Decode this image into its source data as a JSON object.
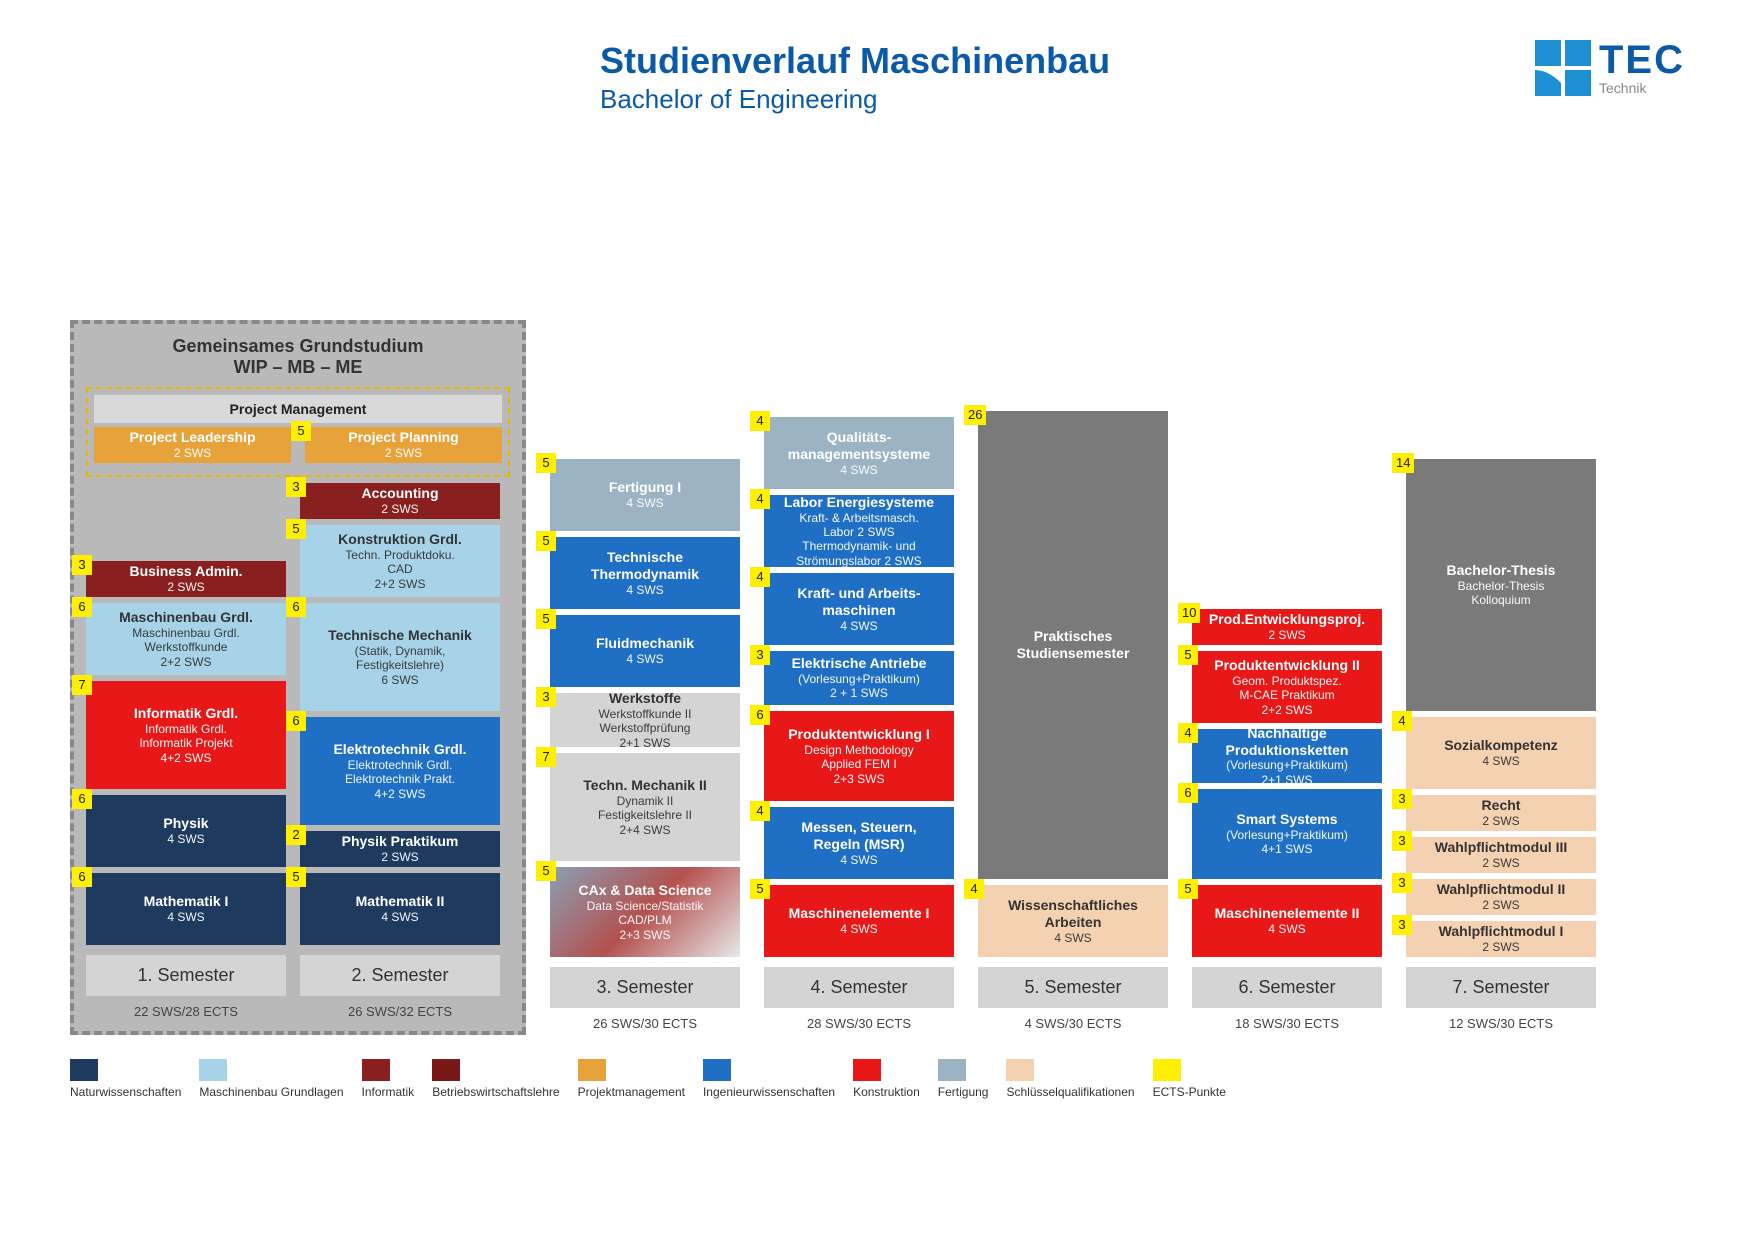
{
  "title": "Studienverlauf Maschinenbau",
  "subtitle": "Bachelor of Engineering",
  "logo": {
    "tec": "TEC",
    "sub": "Technik"
  },
  "colors": {
    "natur": "#1e3a5f",
    "mbgrund": "#a7d3e8",
    "informatik": "#7a1818",
    "bwl": "#7a1818",
    "bwl2": "#8a1f1f",
    "proj": "#e8a23a",
    "ingw": "#1f6fc4",
    "konstr": "#e81818",
    "fert": "#9cb3c4",
    "schl": "#f4d1b0",
    "ects": "#ffef00",
    "grey": "#7a7a7a",
    "greylight": "#d4d4d4"
  },
  "pxPerSws": 18,
  "grund": {
    "header1": "Gemeinsames Grundstudium",
    "header2": "WIP – MB – ME",
    "pmHeader": "Project Management"
  },
  "semesters": [
    {
      "id": "s1",
      "label": "1. Semester",
      "sws": "22 SWS/28 ECTS",
      "modules": [
        {
          "name": "project-leadership",
          "title": "Project Leadership",
          "sub": "2 SWS",
          "ects": "",
          "height": 2,
          "color": "proj",
          "inPM": true
        },
        {
          "name": "business-admin",
          "title": "Business Admin.",
          "sub": "2 SWS",
          "ects": "3",
          "height": 2,
          "color": "bwl2"
        },
        {
          "name": "maschinenbau-grdl",
          "title": "Maschinenbau Grdl.",
          "sub": "Maschinenbau Grdl.\nWerkstoffkunde\n2+2 SWS",
          "ects": "6",
          "height": 4,
          "color": "mbgrund",
          "dark": true
        },
        {
          "name": "informatik-grdl",
          "title": "Informatik Grdl.",
          "sub": "Informatik Grdl.\nInformatik Projekt\n4+2 SWS",
          "ects": "7",
          "height": 6,
          "color": "konstr"
        },
        {
          "name": "physik",
          "title": "Physik",
          "sub": "4 SWS",
          "ects": "6",
          "height": 4,
          "color": "natur"
        },
        {
          "name": "mathematik-i",
          "title": "Mathematik I",
          "sub": "4 SWS",
          "ects": "6",
          "height": 4,
          "color": "natur"
        }
      ]
    },
    {
      "id": "s2",
      "label": "2. Semester",
      "sws": "26 SWS/32 ECTS",
      "modules": [
        {
          "name": "project-planning",
          "title": "Project Planning",
          "sub": "2 SWS",
          "ects": "5",
          "height": 2,
          "color": "proj",
          "inPM": true
        },
        {
          "name": "accounting",
          "title": "Accounting",
          "sub": "2 SWS",
          "ects": "3",
          "height": 2,
          "color": "bwl2"
        },
        {
          "name": "konstruktion-grdl",
          "title": "Konstruktion Grdl.",
          "sub": "Techn. Produktdoku.\nCAD\n2+2 SWS",
          "ects": "5",
          "height": 4,
          "color": "mbgrund",
          "dark": true
        },
        {
          "name": "technische-mechanik",
          "title": "Technische Mechanik",
          "sub": "(Statik, Dynamik,\nFestigkeitslehre)\n6 SWS",
          "ects": "6",
          "height": 6,
          "color": "mbgrund",
          "dark": true
        },
        {
          "name": "elektrotechnik-grdl",
          "title": "Elektrotechnik Grdl.",
          "sub": "Elektrotechnik Grdl.\nElektrotechnik Prakt.\n4+2 SWS",
          "ects": "6",
          "height": 6,
          "color": "ingw"
        },
        {
          "name": "physik-praktikum",
          "title": "Physik Praktikum",
          "sub": "2 SWS",
          "ects": "2",
          "height": 2,
          "color": "natur"
        },
        {
          "name": "mathematik-ii",
          "title": "Mathematik II",
          "sub": "4 SWS",
          "ects": "5",
          "height": 4,
          "color": "natur"
        }
      ]
    },
    {
      "id": "s3",
      "label": "3. Semester",
      "sws": "26 SWS/30 ECTS",
      "modules": [
        {
          "name": "fertigung-i",
          "title": "Fertigung I",
          "sub": "4 SWS",
          "ects": "5",
          "height": 4,
          "color": "fert"
        },
        {
          "name": "tech-thermodynamik",
          "title": "Technische\nThermodynamik",
          "sub": "4 SWS",
          "ects": "5",
          "height": 4,
          "color": "ingw"
        },
        {
          "name": "fluidmechanik",
          "title": "Fluidmechanik",
          "sub": "4 SWS",
          "ects": "5",
          "height": 4,
          "color": "ingw"
        },
        {
          "name": "werkstoffe",
          "title": "Werkstoffe",
          "sub": "Werkstoffkunde II\nWerkstoffprüfung\n2+1 SWS",
          "ects": "3",
          "height": 3,
          "color": "greylight",
          "dark": true
        },
        {
          "name": "techn-mechanik-ii",
          "title": "Techn. Mechanik II",
          "sub": "Dynamik II\nFestigkeitslehre II\n2+4 SWS",
          "ects": "7",
          "height": 6,
          "color": "greylight",
          "dark": true
        },
        {
          "name": "cax-data-science",
          "title": "CAx & Data Science",
          "sub": "Data Science/Statistik\nCAD/PLM\n2+3 SWS",
          "ects": "5",
          "height": 5,
          "color": "grad"
        }
      ]
    },
    {
      "id": "s4",
      "label": "4. Semester",
      "sws": "28 SWS/30 ECTS",
      "modules": [
        {
          "name": "qualitaetsmgmt",
          "title": "Qualitäts-\nmanagementsysteme",
          "sub": "4 SWS",
          "ects": "4",
          "height": 4,
          "color": "fert"
        },
        {
          "name": "labor-energie",
          "title": "Labor Energiesysteme",
          "sub": "Kraft- & Arbeitsmasch.\nLabor 2 SWS\nThermodynamik- und\nStrömungslabor 2 SWS",
          "ects": "4",
          "height": 4,
          "color": "ingw"
        },
        {
          "name": "kraft-arbeits",
          "title": "Kraft- und Arbeits-\nmaschinen",
          "sub": "4 SWS",
          "ects": "4",
          "height": 4,
          "color": "ingw"
        },
        {
          "name": "elektr-antriebe",
          "title": "Elektrische Antriebe",
          "sub": "(Vorlesung+Praktikum)\n2 + 1 SWS",
          "ects": "3",
          "height": 3,
          "color": "ingw"
        },
        {
          "name": "produktentw-i",
          "title": "Produktentwicklung I",
          "sub": "Design Methodology\nApplied FEM I\n2+3 SWS",
          "ects": "6",
          "height": 5,
          "color": "konstr"
        },
        {
          "name": "msr",
          "title": "Messen, Steuern,\nRegeln (MSR)",
          "sub": "4 SWS",
          "ects": "4",
          "height": 4,
          "color": "ingw"
        },
        {
          "name": "maschinenelem-i",
          "title": "Maschinenelemente I",
          "sub": "4 SWS",
          "ects": "5",
          "height": 4,
          "color": "konstr"
        }
      ]
    },
    {
      "id": "s5",
      "label": "5. Semester",
      "sws": "4 SWS/30 ECTS",
      "modules": [
        {
          "name": "praktisches-sem",
          "title": "Praktisches\nStudiensemester",
          "sub": "",
          "ects": "26",
          "height": 26,
          "color": "grey"
        },
        {
          "name": "wiss-arbeiten",
          "title": "Wissenschaftliches\nArbeiten",
          "sub": "4 SWS",
          "ects": "4",
          "height": 4,
          "color": "schl",
          "dark": true
        }
      ]
    },
    {
      "id": "s6",
      "label": "6. Semester",
      "sws": "18 SWS/30 ECTS",
      "modules": [
        {
          "name": "prod-entw-proj",
          "title": "Prod.Entwicklungsproj.",
          "sub": "2 SWS",
          "ects": "10",
          "height": 2,
          "color": "konstr"
        },
        {
          "name": "produktentw-ii",
          "title": "Produktentwicklung II",
          "sub": "Geom. Produktspez.\nM-CAE Praktikum\n2+2 SWS",
          "ects": "5",
          "height": 4,
          "color": "konstr"
        },
        {
          "name": "nachh-prodketten",
          "title": "Nachhaltige\nProduktionsketten",
          "sub": "(Vorlesung+Praktikum)\n2+1 SWS",
          "ects": "4",
          "height": 3,
          "color": "ingw"
        },
        {
          "name": "smart-systems",
          "title": "Smart Systems",
          "sub": "(Vorlesung+Praktikum)\n4+1 SWS",
          "ects": "6",
          "height": 5,
          "color": "ingw"
        },
        {
          "name": "maschinenelem-ii",
          "title": "Maschinenelemente II",
          "sub": "4 SWS",
          "ects": "5",
          "height": 4,
          "color": "konstr"
        }
      ]
    },
    {
      "id": "s7",
      "label": "7. Semester",
      "sws": "12 SWS/30 ECTS",
      "modules": [
        {
          "name": "bachelor-thesis",
          "title": "Bachelor-Thesis",
          "sub": "Bachelor-Thesis\nKolloquium",
          "ects": "14",
          "height": 14,
          "color": "grey"
        },
        {
          "name": "sozialkompetenz",
          "title": "Sozialkompetenz",
          "sub": "4 SWS",
          "ects": "4",
          "height": 4,
          "color": "schl",
          "dark": true
        },
        {
          "name": "recht",
          "title": "Recht",
          "sub": "2 SWS",
          "ects": "3",
          "height": 2,
          "color": "schl",
          "dark": true
        },
        {
          "name": "wahlpflicht-iii",
          "title": "Wahlpflichtmodul III",
          "sub": "2 SWS",
          "ects": "3",
          "height": 2,
          "color": "schl",
          "dark": true
        },
        {
          "name": "wahlpflicht-ii",
          "title": "Wahlpflichtmodul II",
          "sub": "2 SWS",
          "ects": "3",
          "height": 2,
          "color": "schl",
          "dark": true
        },
        {
          "name": "wahlpflicht-i",
          "title": "Wahlpflichtmodul I",
          "sub": "2 SWS",
          "ects": "3",
          "height": 2,
          "color": "schl",
          "dark": true
        }
      ]
    }
  ],
  "legend": [
    {
      "label": "Naturwissenschaften",
      "color": "natur"
    },
    {
      "label": "Maschinenbau Grundlagen",
      "color": "mbgrund"
    },
    {
      "label": "Informatik",
      "color": "bwl2"
    },
    {
      "label": "Betriebswirtschaftslehre",
      "color": "informatik"
    },
    {
      "label": "Projektmanagement",
      "color": "proj"
    },
    {
      "label": "Ingenieurwissenschaften",
      "color": "ingw"
    },
    {
      "label": "Konstruktion",
      "color": "konstr"
    },
    {
      "label": "Fertigung",
      "color": "fert"
    },
    {
      "label": "Schlüsselqualifikationen",
      "color": "schl"
    },
    {
      "label": "ECTS-Punkte",
      "color": "ects"
    }
  ]
}
